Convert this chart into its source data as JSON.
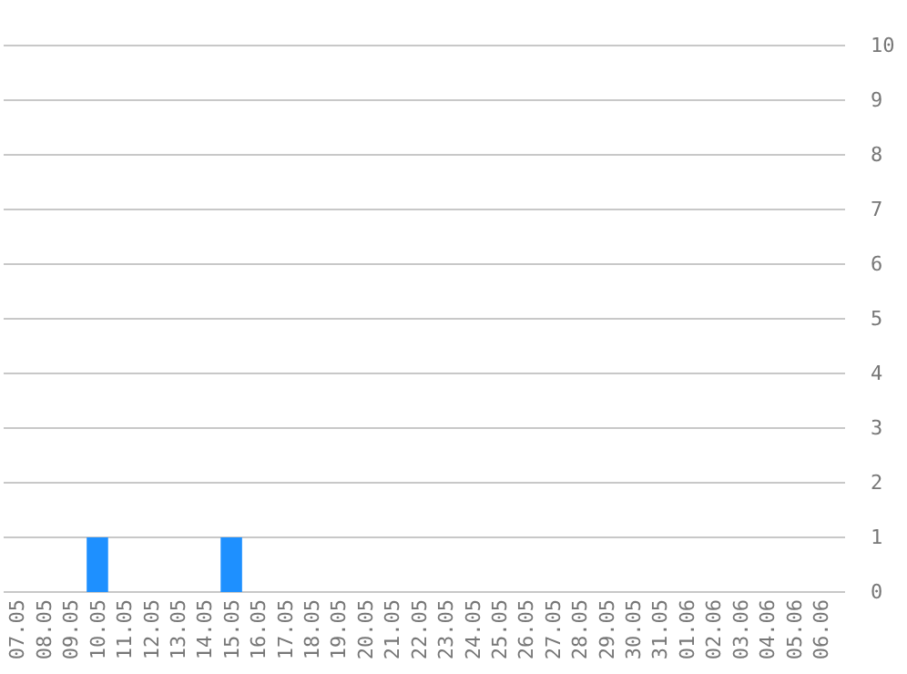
{
  "chart_data": {
    "type": "bar",
    "categories": [
      "07.05",
      "08.05",
      "09.05",
      "10.05",
      "11.05",
      "12.05",
      "13.05",
      "14.05",
      "15.05",
      "16.05",
      "17.05",
      "18.05",
      "19.05",
      "20.05",
      "21.05",
      "22.05",
      "23.05",
      "24.05",
      "25.05",
      "26.05",
      "27.05",
      "28.05",
      "29.05",
      "30.05",
      "31.05",
      "01.06",
      "02.06",
      "03.06",
      "04.06",
      "05.06",
      "06.06"
    ],
    "values": [
      0,
      0,
      0,
      1,
      0,
      0,
      0,
      0,
      1,
      0,
      0,
      0,
      0,
      0,
      0,
      0,
      0,
      0,
      0,
      0,
      0,
      0,
      0,
      0,
      0,
      0,
      0,
      0,
      0,
      0,
      0
    ],
    "color": "#1e90ff",
    "ylim": [
      0,
      10
    ],
    "yticks": [
      0,
      1,
      2,
      3,
      4,
      5,
      6,
      7,
      8,
      9,
      10
    ],
    "grid": "y"
  }
}
